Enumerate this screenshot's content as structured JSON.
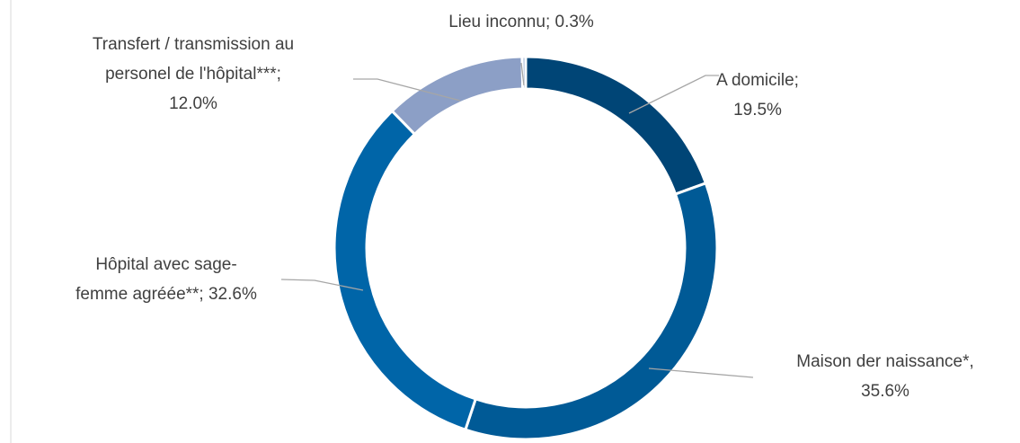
{
  "chart_data": {
    "type": "donut",
    "values": [
      19.5,
      35.6,
      32.6,
      12.0,
      0.3
    ],
    "value_labels": [
      "A domicile; 19.5%",
      "Maison der naissance*, 35.6%",
      "Hôpital avec sage-femme agréée**; 32.6%",
      "Transfert / transmission au personel de l'hôpital***; 12.0%",
      "Lieu inconnu; 0.3%"
    ],
    "colors": [
      "#004576",
      "#005a96",
      "#0065a8",
      "#8c9fc6",
      "#9aaed0"
    ]
  }
}
